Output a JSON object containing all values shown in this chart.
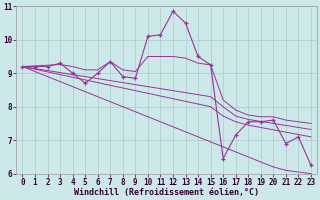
{
  "x_hours": [
    0,
    1,
    2,
    3,
    4,
    5,
    6,
    7,
    8,
    9,
    10,
    11,
    12,
    13,
    14,
    15,
    16,
    17,
    18,
    19,
    20,
    21,
    22,
    23
  ],
  "y_main": [
    9.2,
    9.2,
    9.2,
    9.3,
    9.0,
    8.7,
    9.0,
    9.35,
    8.9,
    8.85,
    10.1,
    10.15,
    10.85,
    10.5,
    9.5,
    9.25,
    6.45,
    7.15,
    7.55,
    7.55,
    7.6,
    6.9,
    7.1,
    6.25
  ],
  "y_trend_top": [
    9.2,
    9.22,
    9.24,
    9.26,
    9.2,
    9.1,
    9.1,
    9.35,
    9.1,
    9.05,
    9.5,
    9.5,
    9.5,
    9.45,
    9.3,
    9.25,
    8.2,
    7.9,
    7.75,
    7.7,
    7.7,
    7.6,
    7.55,
    7.5
  ],
  "y_trend_mid1": [
    9.2,
    9.14,
    9.08,
    9.02,
    8.96,
    8.9,
    8.84,
    8.78,
    8.72,
    8.66,
    8.6,
    8.54,
    8.48,
    8.42,
    8.36,
    8.3,
    8.0,
    7.72,
    7.62,
    7.56,
    7.5,
    7.44,
    7.38,
    7.32
  ],
  "y_trend_mid2": [
    9.2,
    9.12,
    9.04,
    8.96,
    8.88,
    8.8,
    8.72,
    8.64,
    8.56,
    8.48,
    8.4,
    8.32,
    8.24,
    8.16,
    8.08,
    8.0,
    7.72,
    7.55,
    7.45,
    7.38,
    7.31,
    7.24,
    7.17,
    7.1
  ],
  "y_trend_bot": [
    9.2,
    9.05,
    8.9,
    8.75,
    8.6,
    8.45,
    8.3,
    8.15,
    8.0,
    7.85,
    7.7,
    7.55,
    7.4,
    7.25,
    7.1,
    6.95,
    6.8,
    6.65,
    6.5,
    6.35,
    6.2,
    6.1,
    6.05,
    6.0
  ],
  "line_color": "#993399",
  "bg_color": "#cce8e8",
  "grid_color": "#aacccc",
  "xlabel": "Windchill (Refroidissement éolien,°C)",
  "ylim": [
    6,
    11
  ],
  "xlim": [
    -0.5,
    23.5
  ],
  "yticks": [
    6,
    7,
    8,
    9,
    10,
    11
  ],
  "xticks": [
    0,
    1,
    2,
    3,
    4,
    5,
    6,
    7,
    8,
    9,
    10,
    11,
    12,
    13,
    14,
    15,
    16,
    17,
    18,
    19,
    20,
    21,
    22,
    23
  ],
  "tick_fontsize": 5.5,
  "xlabel_fontsize": 6.0
}
